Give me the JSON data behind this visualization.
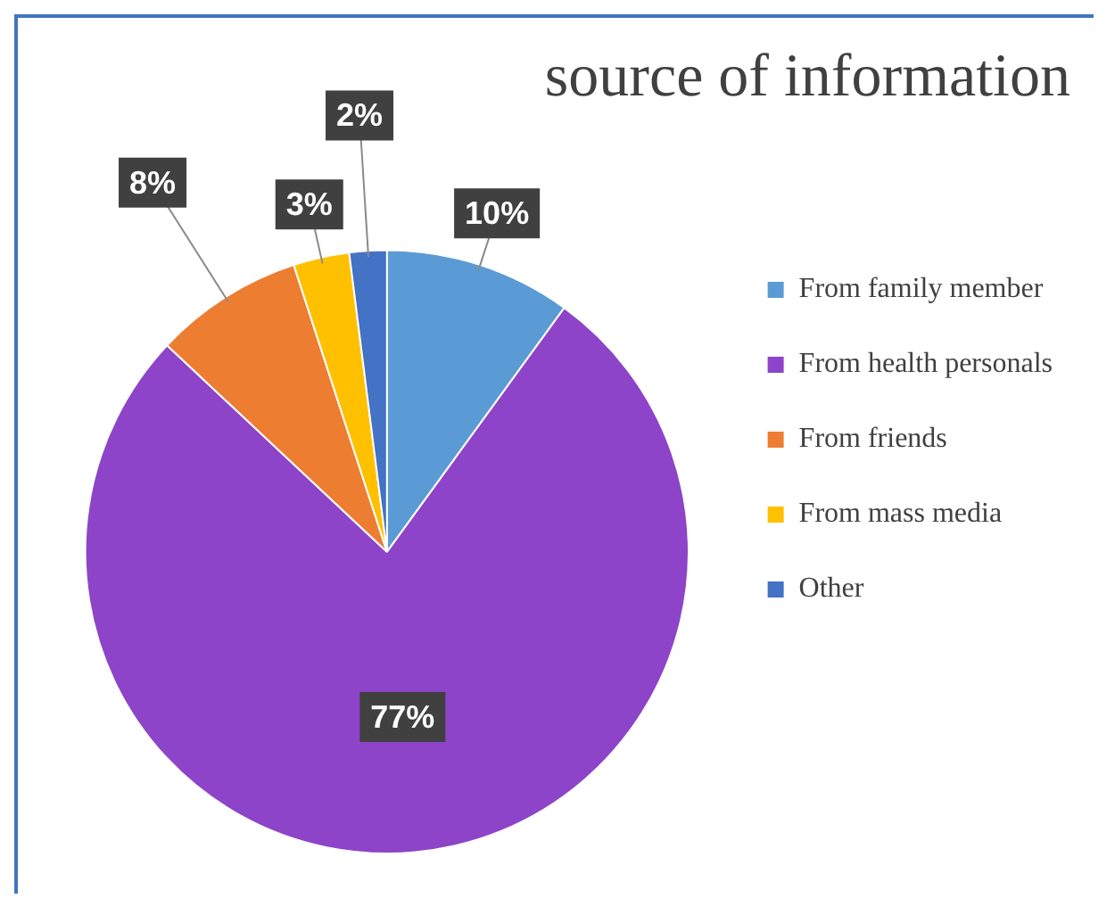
{
  "chart_data": {
    "type": "pie",
    "title": "source of information",
    "categories": [
      "From family member",
      "From health personals",
      "From friends",
      "From mass media",
      "Other"
    ],
    "values": [
      10,
      77,
      8,
      3,
      2
    ],
    "colors": [
      "#5b9bd5",
      "#8e44c8",
      "#ed7d31",
      "#ffc000",
      "#4472c4"
    ],
    "value_labels": [
      "10%",
      "77%",
      "8%",
      "3%",
      "2%"
    ],
    "legend": "right"
  }
}
